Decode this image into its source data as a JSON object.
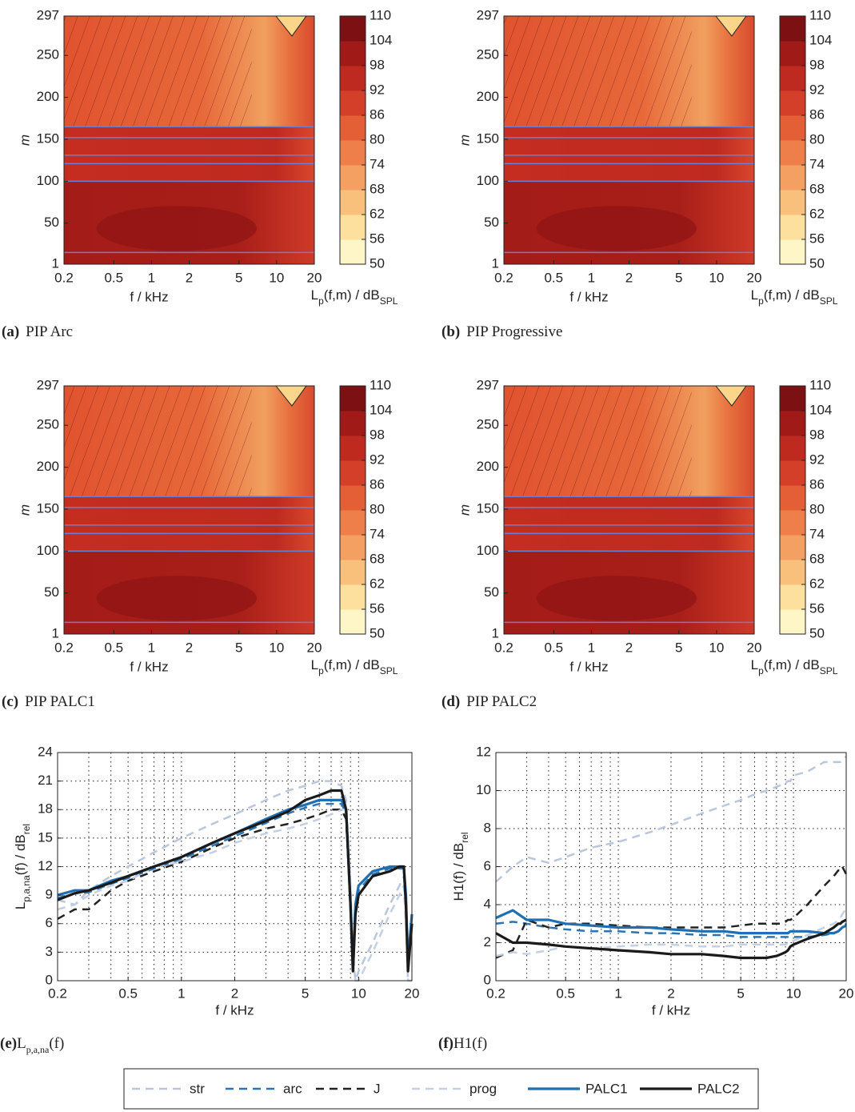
{
  "chart_data": [
    {
      "type": "heatmap",
      "caption_tag": "(a)",
      "caption": "PIP Arc",
      "xlabel": "f / kHz",
      "ylabel": "m",
      "xlim": [
        0.2,
        20
      ],
      "xticks": [
        0.2,
        0.5,
        1,
        2,
        5,
        10,
        20
      ],
      "ylim": [
        1,
        297
      ],
      "yticks": [
        1,
        50,
        100,
        150,
        200,
        250,
        297
      ],
      "lines_m": [
        15,
        100,
        121,
        131,
        152,
        165
      ],
      "colorbar": {
        "label": [
          "L",
          "p",
          "(f,m) / dB",
          "SPL"
        ],
        "lim": [
          50,
          110
        ],
        "ticks": [
          50,
          56,
          62,
          68,
          74,
          80,
          86,
          92,
          98,
          104,
          110
        ],
        "colors": [
          "#fff6c8",
          "#fddf9e",
          "#f9c07c",
          "#f4a062",
          "#ee7f4a",
          "#e45e36",
          "#d43f29",
          "#bf2a20",
          "#a01a18",
          "#7c1012"
        ]
      }
    },
    {
      "type": "heatmap",
      "caption_tag": "(b)",
      "caption": "PIP Progressive",
      "xlabel": "f / kHz",
      "ylabel": "m",
      "xlim": [
        0.2,
        20
      ],
      "xticks": [
        0.2,
        0.5,
        1,
        2,
        5,
        10,
        20
      ],
      "ylim": [
        1,
        297
      ],
      "yticks": [
        1,
        50,
        100,
        150,
        200,
        250,
        297
      ],
      "lines_m": [
        15,
        100,
        121,
        131,
        152,
        165
      ],
      "colorbar": {
        "label": [
          "L",
          "p",
          "(f,m) / dB",
          "SPL"
        ],
        "lim": [
          50,
          110
        ],
        "ticks": [
          50,
          56,
          62,
          68,
          74,
          80,
          86,
          92,
          98,
          104,
          110
        ],
        "colors": [
          "#fff6c8",
          "#fddf9e",
          "#f9c07c",
          "#f4a062",
          "#ee7f4a",
          "#e45e36",
          "#d43f29",
          "#bf2a20",
          "#a01a18",
          "#7c1012"
        ]
      }
    },
    {
      "type": "heatmap",
      "caption_tag": "(c)",
      "caption": "PIP PALC1",
      "xlabel": "f / kHz",
      "ylabel": "m",
      "xlim": [
        0.2,
        20
      ],
      "xticks": [
        0.2,
        0.5,
        1,
        2,
        5,
        10,
        20
      ],
      "ylim": [
        1,
        297
      ],
      "yticks": [
        1,
        50,
        100,
        150,
        200,
        250,
        297
      ],
      "lines_m": [
        15,
        100,
        121,
        131,
        152,
        165
      ],
      "colorbar": {
        "label": [
          "L",
          "p",
          "(f,m) / dB",
          "SPL"
        ],
        "lim": [
          50,
          110
        ],
        "ticks": [
          50,
          56,
          62,
          68,
          74,
          80,
          86,
          92,
          98,
          104,
          110
        ],
        "colors": [
          "#fff6c8",
          "#fddf9e",
          "#f9c07c",
          "#f4a062",
          "#ee7f4a",
          "#e45e36",
          "#d43f29",
          "#bf2a20",
          "#a01a18",
          "#7c1012"
        ]
      }
    },
    {
      "type": "heatmap",
      "caption_tag": "(d)",
      "caption": "PIP PALC2",
      "xlabel": "f / kHz",
      "ylabel": "m",
      "xlim": [
        0.2,
        20
      ],
      "xticks": [
        0.2,
        0.5,
        1,
        2,
        5,
        10,
        20
      ],
      "ylim": [
        1,
        297
      ],
      "yticks": [
        1,
        50,
        100,
        150,
        200,
        250,
        297
      ],
      "lines_m": [
        15,
        100,
        121,
        131,
        152,
        165
      ],
      "colorbar": {
        "label": [
          "L",
          "p",
          "(f,m) / dB",
          "SPL"
        ],
        "lim": [
          50,
          110
        ],
        "ticks": [
          50,
          56,
          62,
          68,
          74,
          80,
          86,
          92,
          98,
          104,
          110
        ],
        "colors": [
          "#fff6c8",
          "#fddf9e",
          "#f9c07c",
          "#f4a062",
          "#ee7f4a",
          "#e45e36",
          "#d43f29",
          "#bf2a20",
          "#a01a18",
          "#7c1012"
        ]
      }
    },
    {
      "type": "line",
      "caption_tag": "(e)",
      "caption": [
        "L",
        "p,a,na",
        "(f)"
      ],
      "xlabel": "f / kHz",
      "ylabel": [
        "L",
        "p,a,na",
        "(f) / dB",
        "rel"
      ],
      "log_x": true,
      "grid": true,
      "xlim": [
        0.2,
        20
      ],
      "xticks": [
        0.2,
        0.5,
        1,
        2,
        5,
        10,
        20
      ],
      "xgrid": [
        0.2,
        0.3,
        0.4,
        0.5,
        0.6,
        0.7,
        0.8,
        0.9,
        1,
        2,
        3,
        4,
        5,
        6,
        7,
        8,
        9,
        10,
        20
      ],
      "ylim": [
        0,
        24
      ],
      "yticks": [
        0,
        3,
        6,
        9,
        12,
        15,
        18,
        21,
        24
      ],
      "x": [
        0.2,
        0.25,
        0.3,
        0.4,
        0.5,
        0.7,
        1,
        1.5,
        2,
        3,
        4,
        5,
        6,
        7,
        8,
        8.5,
        9,
        9.3,
        9.6,
        10,
        12,
        15,
        17,
        18,
        18.5,
        19,
        20
      ],
      "series": [
        {
          "name": "str",
          "color": "#b9c6dc",
          "dash": true,
          "values": [
            8.5,
            8,
            9.5,
            11,
            12,
            13.5,
            15,
            16.5,
            17.5,
            19,
            20,
            20.5,
            21,
            21,
            20.5,
            19,
            10,
            3,
            0,
            1,
            4,
            8,
            10,
            11,
            7,
            0,
            0
          ]
        },
        {
          "name": "arc",
          "color": "#2d74b3",
          "dash": true,
          "values": [
            8.7,
            9.2,
            9.3,
            10.2,
            10.8,
            11.8,
            12.8,
            14.2,
            15.2,
            16.6,
            17.6,
            18.2,
            18.6,
            18.6,
            18.6,
            17.6,
            8,
            1,
            7.5,
            9.5,
            11.2,
            11.8,
            11.8,
            11.8,
            8.5,
            1.5,
            6.8
          ]
        },
        {
          "name": "J",
          "color": "#222222",
          "dash": true,
          "values": [
            6.5,
            7.5,
            7.5,
            9.5,
            10.5,
            11.5,
            12.5,
            14,
            15,
            16,
            16.5,
            17,
            17.5,
            18,
            18,
            17,
            8,
            1,
            7,
            9,
            11,
            11.5,
            12,
            12,
            8,
            1,
            6
          ]
        },
        {
          "name": "prog",
          "color": "#c3cfe2",
          "dash": true,
          "values": [
            7.5,
            8,
            9,
            10,
            10.5,
            12,
            12.5,
            13.5,
            14.5,
            15.5,
            16,
            16.5,
            17,
            17.5,
            18,
            18,
            10,
            2,
            0,
            0,
            3,
            7,
            9,
            10,
            6,
            0,
            0
          ]
        },
        {
          "name": "PALC1",
          "color": "#1f6fb2",
          "dash": false,
          "values": [
            9,
            9.5,
            9.5,
            10.5,
            11,
            12,
            13,
            14.5,
            15.5,
            17,
            18,
            18.5,
            19,
            19,
            19,
            18,
            8,
            1,
            8,
            10,
            11.5,
            12,
            12,
            12,
            9,
            2,
            7
          ]
        },
        {
          "name": "PALC2",
          "color": "#1a1a1a",
          "dash": false,
          "values": [
            8.5,
            9.2,
            9.5,
            10.3,
            11,
            12,
            13,
            14.5,
            15.5,
            16.8,
            17.8,
            19,
            19.5,
            20,
            20,
            18,
            8,
            1,
            7,
            9,
            11,
            11.5,
            12,
            12,
            8,
            1,
            6
          ]
        }
      ]
    },
    {
      "type": "line",
      "caption_tag": "(f)",
      "caption": [
        "H1(f)"
      ],
      "xlabel": "f / kHz",
      "ylabel": [
        "H1(f) / dB",
        "rel"
      ],
      "log_x": true,
      "grid": true,
      "xlim": [
        0.2,
        20
      ],
      "xticks": [
        0.2,
        0.5,
        1,
        2,
        5,
        10,
        20
      ],
      "xgrid": [
        0.2,
        0.3,
        0.4,
        0.5,
        0.6,
        0.7,
        0.8,
        0.9,
        1,
        2,
        3,
        4,
        5,
        6,
        7,
        8,
        9,
        10,
        20
      ],
      "ylim": [
        0,
        12
      ],
      "yticks": [
        0,
        2,
        4,
        6,
        8,
        10,
        12
      ],
      "x": [
        0.2,
        0.25,
        0.3,
        0.4,
        0.5,
        0.7,
        1,
        1.5,
        2,
        3,
        4,
        5,
        6,
        7,
        8,
        8.5,
        9,
        9.3,
        9.6,
        10,
        12,
        15,
        17,
        18,
        18.5,
        19,
        20
      ],
      "series": [
        {
          "color": "#b9c6dc",
          "dash": true,
          "values": [
            5.2,
            6,
            6.5,
            6.2,
            6.5,
            7,
            7.3,
            7.8,
            8.2,
            8.8,
            9.2,
            9.5,
            9.8,
            10,
            10.2,
            10.3,
            10.4,
            10.5,
            10.5,
            10.8,
            11,
            11.5,
            11.5,
            11.5,
            11.5,
            11.6,
            11.8
          ]
        },
        {
          "color": "#2d74b3",
          "dash": true,
          "values": [
            3,
            3.1,
            3,
            2.8,
            2.7,
            2.6,
            2.6,
            2.5,
            2.5,
            2.4,
            2.4,
            2.3,
            2.3,
            2.3,
            2.3,
            2.3,
            2.3,
            2.3,
            2.3,
            2.3,
            2.3,
            2.4,
            2.5,
            2.6,
            2.7,
            2.8,
            3
          ]
        },
        {
          "color": "#222222",
          "dash": true,
          "values": [
            1.2,
            1.6,
            3.2,
            2.8,
            3,
            3,
            2.9,
            2.8,
            2.8,
            2.8,
            2.8,
            2.9,
            3,
            3,
            3,
            3,
            3.1,
            3.2,
            3.2,
            3.3,
            4,
            5,
            5.5,
            5.8,
            5.8,
            6,
            5.6
          ]
        },
        {
          "color": "#c3cfe2",
          "dash": true,
          "values": [
            1.3,
            1.5,
            1.4,
            1.6,
            1.8,
            1.7,
            1.8,
            1.9,
            1.9,
            1.8,
            1.8,
            1.9,
            1.9,
            1.9,
            1.9,
            1.9,
            1.9,
            2,
            2,
            2.1,
            2.4,
            2.8,
            3,
            3.2,
            3.3,
            3.5,
            3.8
          ]
        },
        {
          "color": "#1f6fb2",
          "dash": false,
          "values": [
            3.3,
            3.7,
            3.2,
            3.2,
            3,
            2.9,
            2.8,
            2.8,
            2.7,
            2.6,
            2.6,
            2.5,
            2.5,
            2.5,
            2.5,
            2.5,
            2.5,
            2.5,
            2.6,
            2.6,
            2.6,
            2.5,
            2.5,
            2.6,
            2.7,
            2.8,
            2.9
          ]
        },
        {
          "color": "#1a1a1a",
          "dash": false,
          "values": [
            2.5,
            2,
            2,
            1.9,
            1.8,
            1.7,
            1.6,
            1.5,
            1.4,
            1.4,
            1.3,
            1.2,
            1.2,
            1.2,
            1.3,
            1.4,
            1.5,
            1.6,
            1.8,
            1.9,
            2.2,
            2.5,
            2.8,
            3,
            3,
            3.1,
            3.2
          ]
        }
      ]
    }
  ]
}
